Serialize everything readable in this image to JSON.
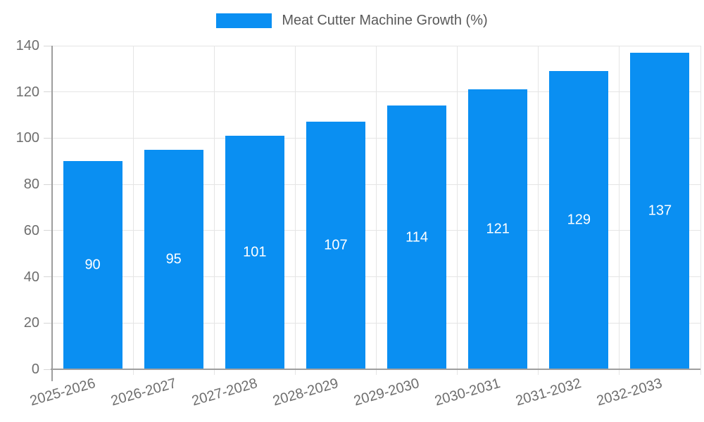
{
  "legend": {
    "label": "Meat Cutter Machine Growth (%)"
  },
  "chart_data": {
    "type": "bar",
    "title": "",
    "xlabel": "",
    "ylabel": "",
    "categories": [
      "2025-2026",
      "2026-2027",
      "2027-2028",
      "2028-2029",
      "2029-2030",
      "2030-2031",
      "2031-2032",
      "2032-2033"
    ],
    "series": [
      {
        "name": "Meat Cutter Machine Growth (%)",
        "values": [
          90,
          95,
          101,
          107,
          114,
          121,
          129,
          137
        ]
      }
    ],
    "value_labels_shown": true,
    "ylim": [
      0,
      140
    ],
    "yticks": [
      0,
      20,
      40,
      60,
      80,
      100,
      120,
      140
    ],
    "grid": true,
    "legend_position": "top",
    "colors": {
      "bar": "#0a8ff2",
      "value_label": "#ffffff",
      "axis_line": "#9e9e9e",
      "grid_line": "#e5e5e5",
      "tick_mark": "#d6d6d6",
      "tick_label": "#6e6e6e",
      "legend_text": "#595959",
      "background": "#ffffff"
    }
  }
}
